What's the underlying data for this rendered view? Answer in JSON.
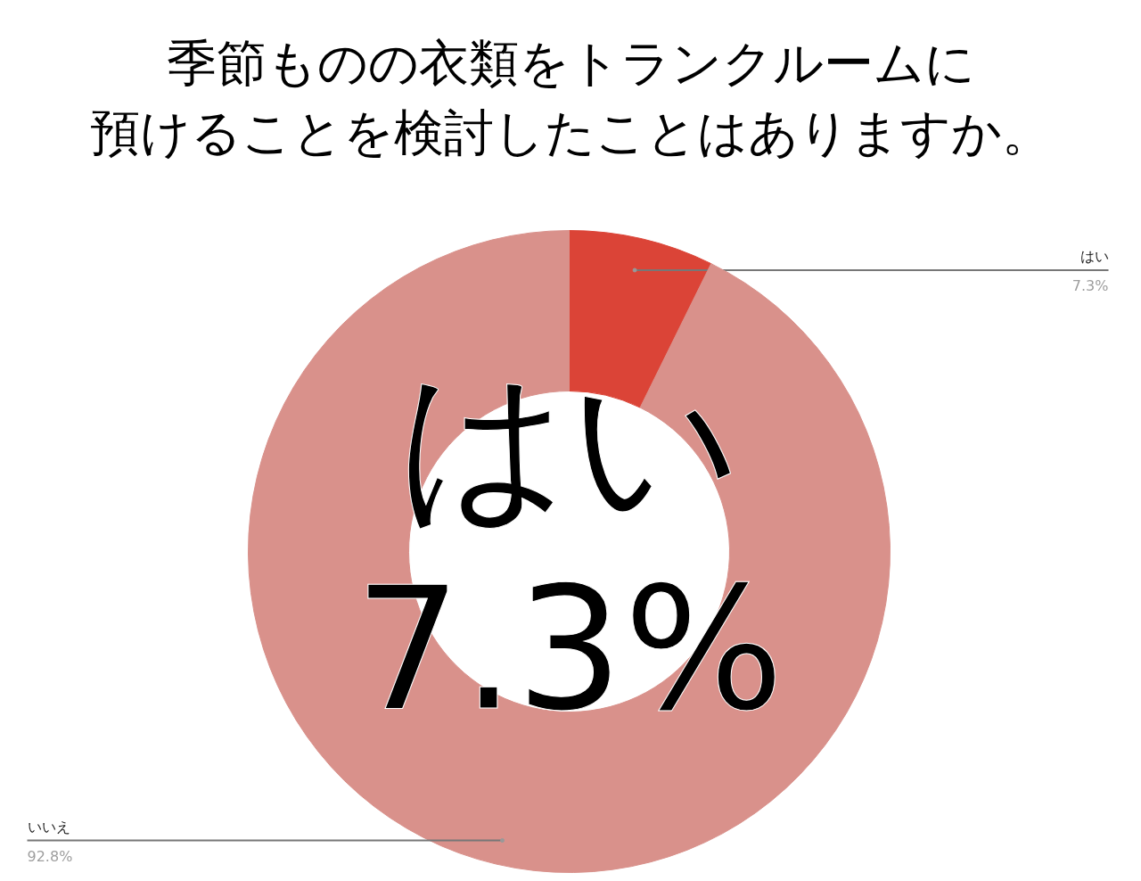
{
  "chart_data": {
    "type": "donut",
    "title": "季節ものの衣類をトランクルームに預けることを検討したことはありますか。",
    "categories": [
      "はい",
      "いいえ"
    ],
    "values": [
      7.3,
      92.8
    ],
    "colors": [
      "#db4437",
      "#d9918b"
    ],
    "value_labels": [
      "7.3%",
      "92.8%"
    ],
    "annotations": [
      "はい",
      "7.3%"
    ],
    "legend": false
  }
}
